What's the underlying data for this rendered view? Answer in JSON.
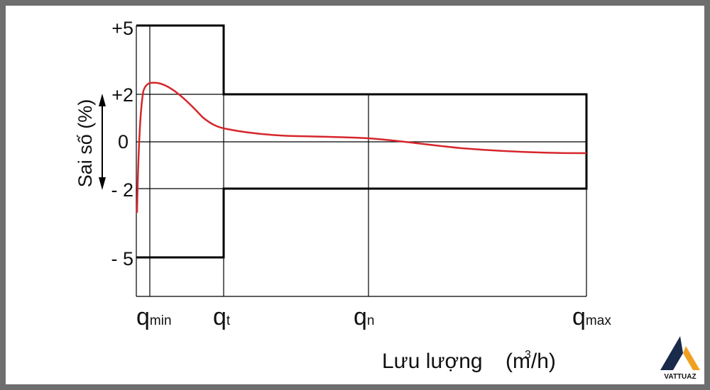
{
  "axis": {
    "y_label": "Sai số (%)",
    "y_ticks": [
      "+5",
      "+2",
      "0",
      "- 2",
      "- 5"
    ],
    "x_ticks": [
      {
        "symbol": "q",
        "subscript": "min"
      },
      {
        "symbol": "q",
        "subscript": "t"
      },
      {
        "symbol": "q",
        "subscript": "n"
      },
      {
        "symbol": "q",
        "subscript": "max"
      }
    ],
    "x_label": "Lưu lượng",
    "x_unit": {
      "open": "(m",
      "superscript": "3",
      "close": "/h)"
    }
  },
  "logo": "VATTUAZ"
}
